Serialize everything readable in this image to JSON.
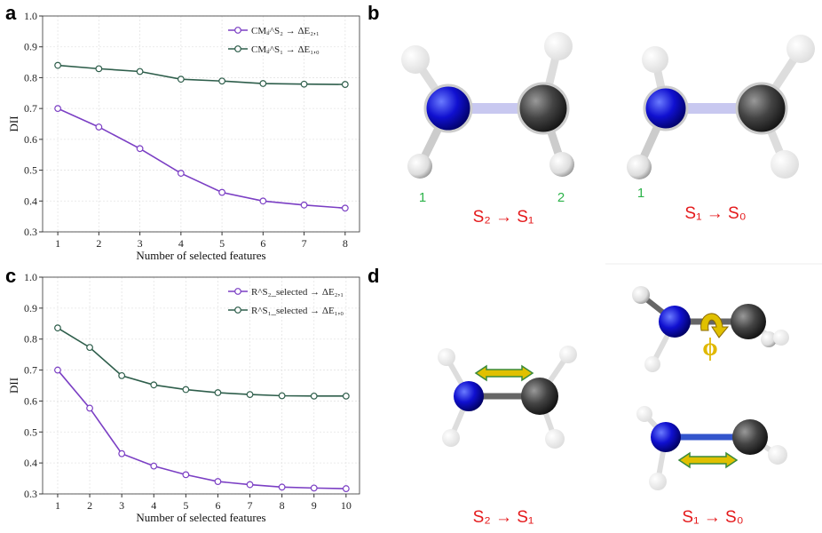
{
  "chart_data": [
    {
      "type": "line",
      "panel": "a",
      "xlabel": "Number of selected features",
      "ylabel": "DII",
      "x": [
        1,
        2,
        3,
        4,
        5,
        6,
        7,
        8
      ],
      "series": [
        {
          "name": "CMᵢⱼ^S₂ → ΔE₂,₁",
          "color": "#7b3fc4",
          "values": [
            0.7,
            0.64,
            0.57,
            0.49,
            0.428,
            0.4,
            0.387,
            0.377
          ]
        },
        {
          "name": "CMᵢⱼ^S₁ → ΔE₁,₀",
          "color": "#2e5e4b",
          "values": [
            0.84,
            0.829,
            0.82,
            0.795,
            0.789,
            0.781,
            0.779,
            0.778
          ]
        }
      ],
      "xlim": [
        0.63,
        8.35
      ],
      "xticks": [
        1,
        2,
        3,
        4,
        5,
        6,
        7,
        8
      ],
      "ylim": [
        0.3,
        1.0
      ],
      "yticks": [
        0.3,
        0.4,
        0.5,
        0.6,
        0.7,
        0.8,
        0.9,
        {
          "value": 1.0,
          "label": "1.0"
        }
      ],
      "grid": true,
      "legend": "upper right"
    },
    {
      "type": "line",
      "panel": "c",
      "xlabel": "Number of selected features",
      "ylabel": "DII",
      "x": [
        1,
        2,
        3,
        4,
        5,
        6,
        7,
        8,
        9,
        10
      ],
      "series": [
        {
          "name": "R^S₂_selected → ΔE₂,₁",
          "color": "#7b3fc4",
          "values": [
            0.7,
            0.577,
            0.43,
            0.39,
            0.362,
            0.34,
            0.33,
            0.322,
            0.319,
            0.317
          ]
        },
        {
          "name": "R^S₁_selected → ΔE₁,₀",
          "color": "#2e5e4b",
          "values": [
            0.836,
            0.773,
            0.682,
            0.652,
            0.637,
            0.627,
            0.621,
            0.617,
            0.616,
            0.616
          ]
        }
      ],
      "xlim": [
        0.53,
        10.42
      ],
      "xticks": [
        1,
        2,
        3,
        4,
        5,
        6,
        7,
        8,
        9,
        10
      ],
      "ylim": [
        0.3,
        1.0
      ],
      "yticks": [
        0.3,
        0.4,
        0.5,
        0.6,
        0.7,
        0.8,
        0.9,
        {
          "value": 1.0,
          "label": "1.0"
        }
      ],
      "grid": true,
      "legend": "upper right"
    }
  ],
  "figure_b": {
    "label": "b",
    "atom_labels": [
      "1",
      "2",
      "1"
    ],
    "captions": [
      "S₂ → S₁",
      "S₁ → S₀"
    ]
  },
  "figure_d": {
    "label": "d",
    "angle": "ϕ",
    "captions": [
      "S₂ → S₁",
      "S₁ → S₀"
    ]
  }
}
